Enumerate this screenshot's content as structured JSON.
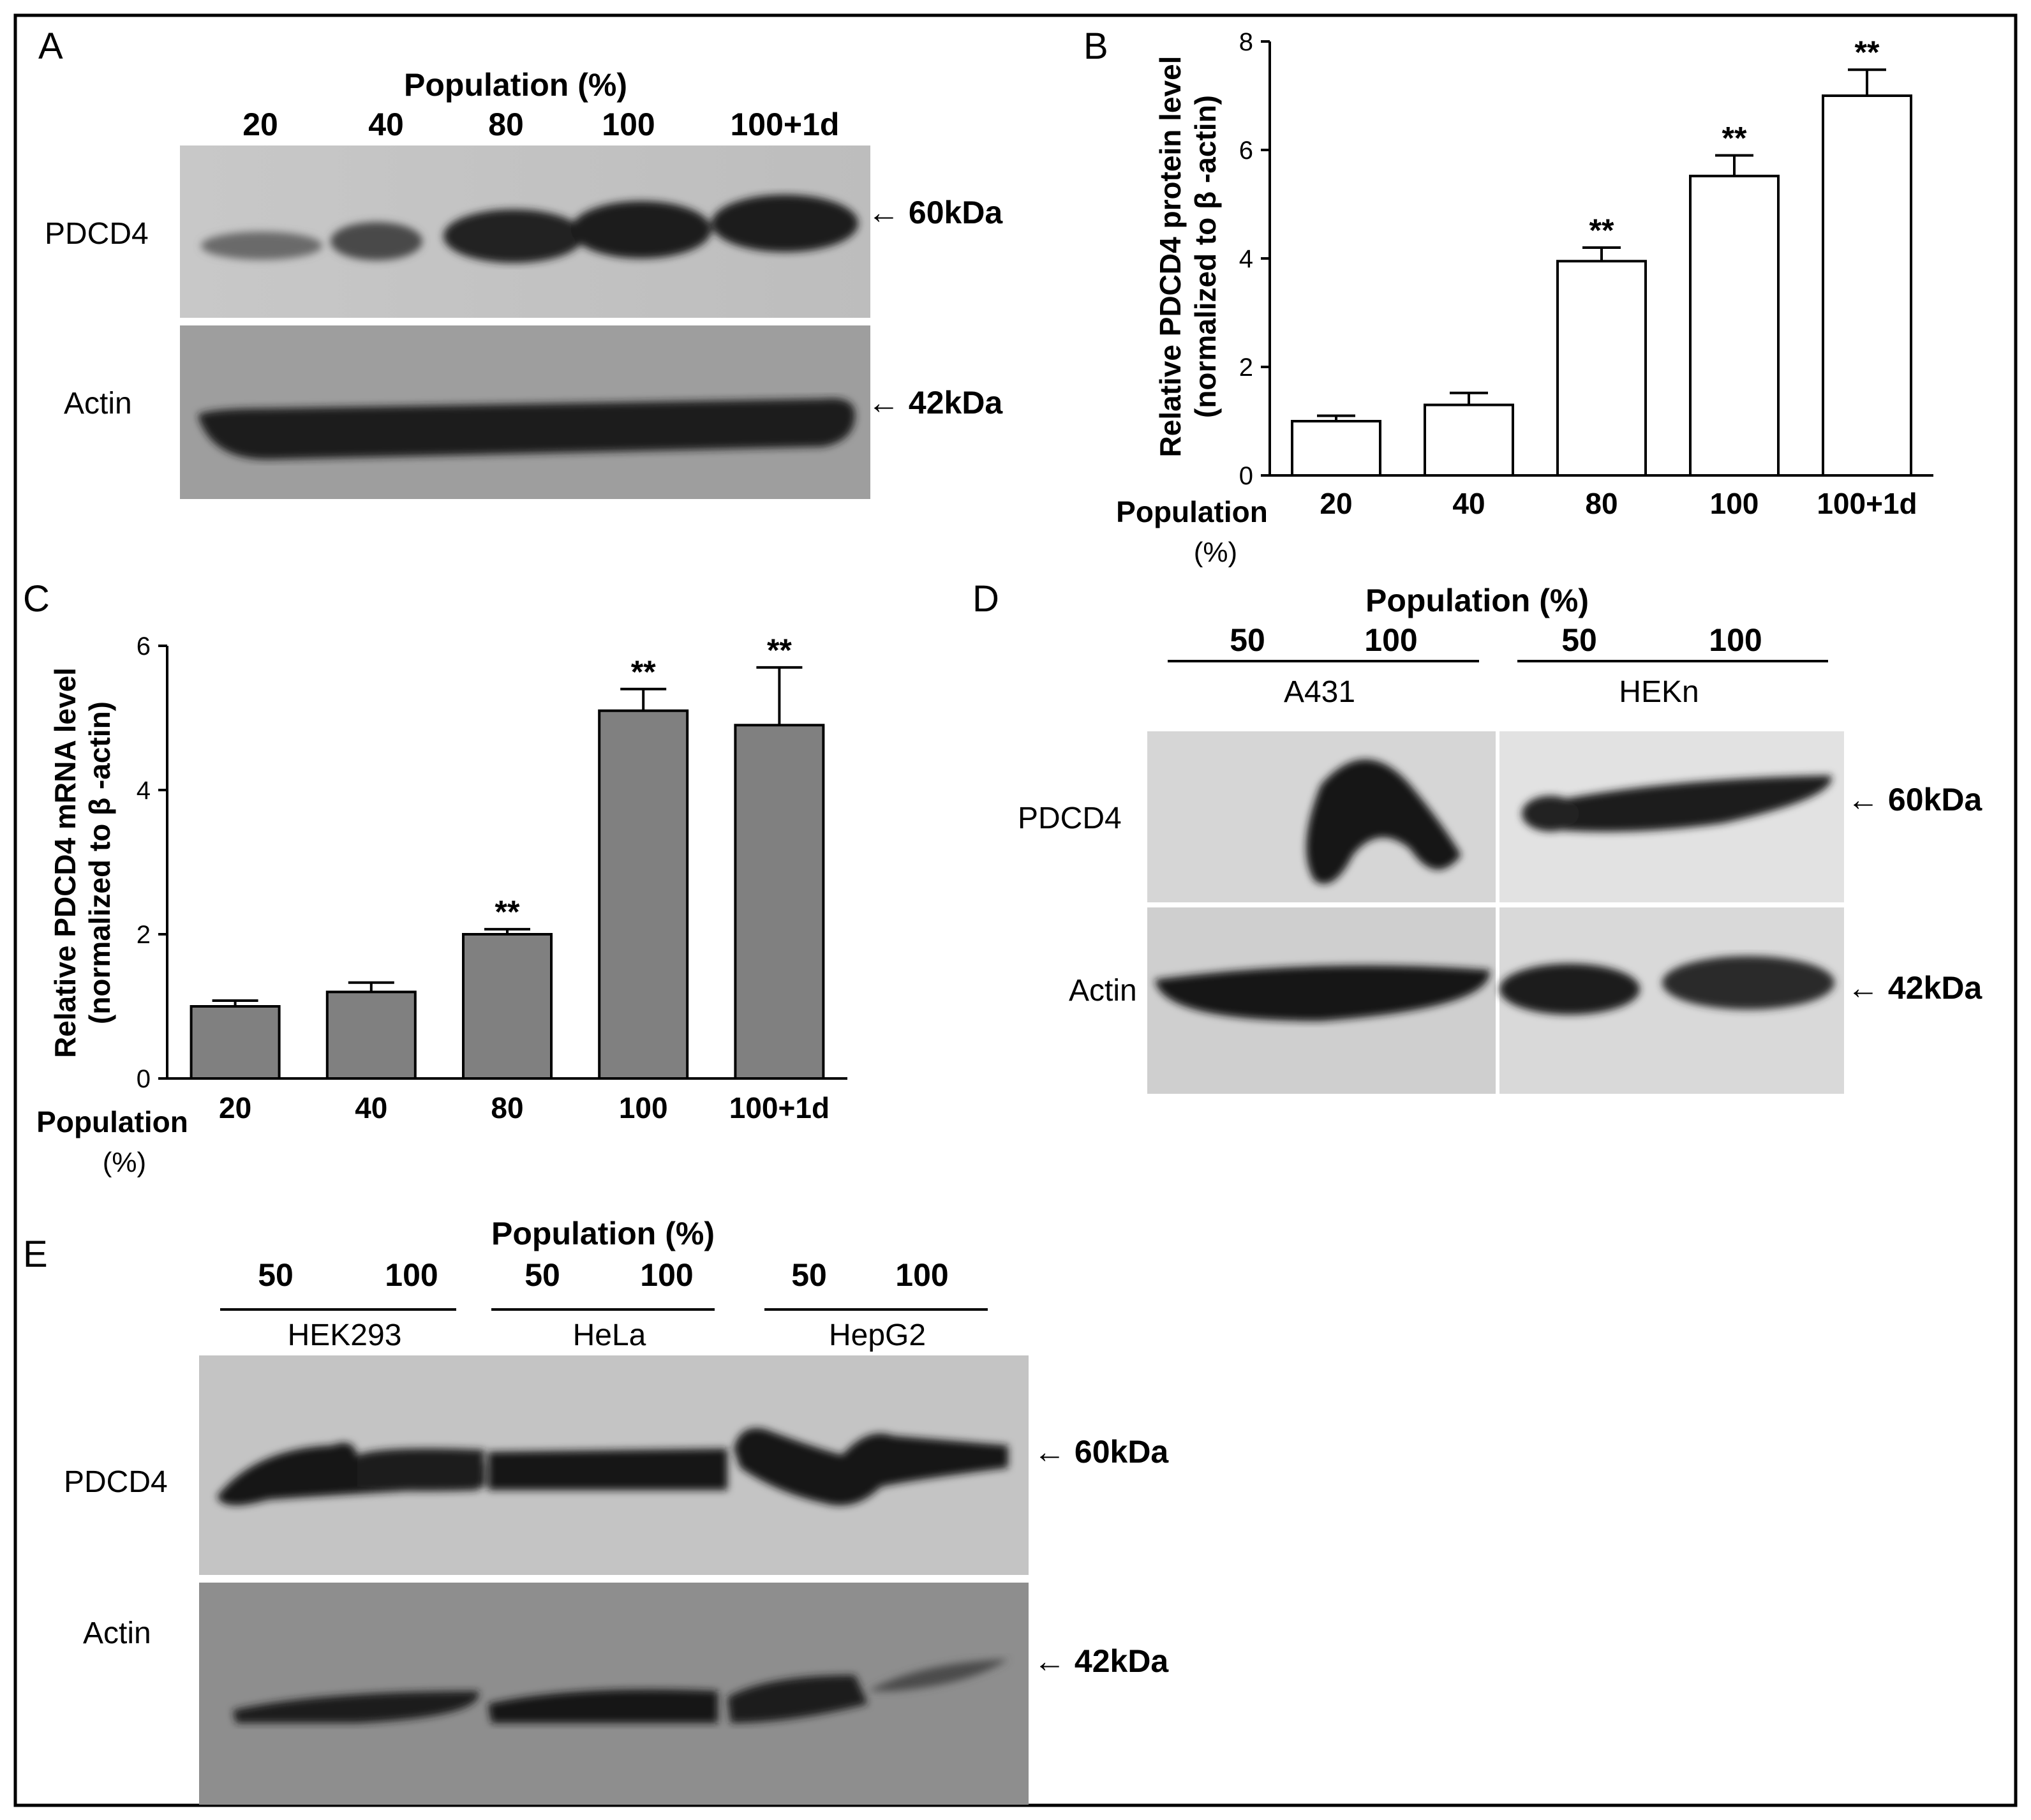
{
  "panels": {
    "A": {
      "letter": "A",
      "header": "Population (%)",
      "lanes": [
        "20",
        "40",
        "80",
        "100",
        "100+1d"
      ],
      "rows": [
        "PDCD4",
        "Actin"
      ],
      "markers": [
        "← 60kDa",
        "← 42kDa"
      ]
    },
    "B": {
      "letter": "B",
      "ylabel_line1": "Relative PDCD4 protein level",
      "ylabel_line2": "(normalized to β -actin)",
      "xlabel_line1": "Population",
      "xlabel_line2": "(%)"
    },
    "C": {
      "letter": "C",
      "ylabel_line1": "Relative PDCD4 mRNA level",
      "ylabel_line2": "(normalized to β -actin)",
      "xlabel_line1": "Population",
      "xlabel_line2": "(%)"
    },
    "D": {
      "letter": "D",
      "header": "Population (%)",
      "lanes": [
        "50",
        "100",
        "50",
        "100"
      ],
      "groups": [
        "A431",
        "HEKn"
      ],
      "rows": [
        "PDCD4",
        "Actin"
      ],
      "markers": [
        "← 60kDa",
        "← 42kDa"
      ]
    },
    "E": {
      "letter": "E",
      "header": "Population (%)",
      "lanes": [
        "50",
        "100",
        "50",
        "100",
        "50",
        "100"
      ],
      "groups": [
        "HEK293",
        "HeLa",
        "HepG2"
      ],
      "rows": [
        "PDCD4",
        "Actin"
      ],
      "markers": [
        "← 60kDa",
        "← 42kDa"
      ]
    }
  },
  "chart_data": [
    {
      "panel": "B",
      "type": "bar",
      "categories": [
        "20",
        "40",
        "80",
        "100",
        "100+1d"
      ],
      "values": [
        1.0,
        1.3,
        3.95,
        5.52,
        7.0
      ],
      "errors": [
        0.1,
        0.22,
        0.25,
        0.38,
        0.48
      ],
      "annotations": [
        "",
        "",
        "**",
        "**",
        "**"
      ],
      "ylim": [
        0,
        8
      ],
      "yticks": [
        "0",
        "2",
        "4",
        "6",
        "8"
      ],
      "bar_color": "#ffffff"
    },
    {
      "panel": "C",
      "type": "bar",
      "categories": [
        "20",
        "40",
        "80",
        "100",
        "100+1d"
      ],
      "values": [
        1.0,
        1.2,
        2.0,
        5.1,
        4.9
      ],
      "errors": [
        0.08,
        0.13,
        0.07,
        0.3,
        0.8
      ],
      "annotations": [
        "",
        "",
        "**",
        "**",
        "**"
      ],
      "ylim": [
        0,
        6
      ],
      "yticks": [
        "0",
        "2",
        "4",
        "6"
      ],
      "bar_color": "#808080"
    }
  ]
}
